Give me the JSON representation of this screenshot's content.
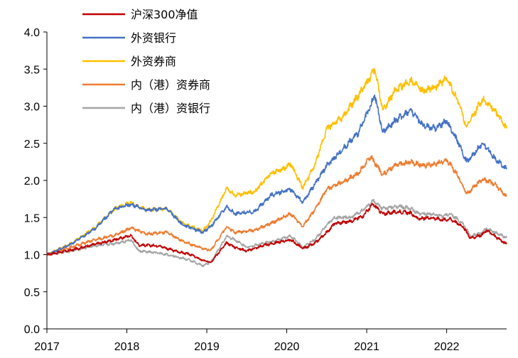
{
  "chart_data": {
    "type": "line",
    "title": "",
    "xlabel": "",
    "ylabel": "",
    "x_ticks": [
      "2017",
      "2018",
      "2019",
      "2020",
      "2021",
      "2022"
    ],
    "x_range": [
      2017.0,
      2022.75
    ],
    "y_ticks": [
      "0.0",
      "0.5",
      "1.0",
      "1.5",
      "2.0",
      "2.5",
      "3.0",
      "3.5",
      "4.0"
    ],
    "ylim": [
      0,
      4
    ],
    "grid": false,
    "legend_position": "top-center",
    "series": [
      {
        "name": "沪深300净值",
        "color": "#C00000",
        "points": [
          [
            2017.0,
            1.0
          ],
          [
            2017.3,
            1.06
          ],
          [
            2017.6,
            1.14
          ],
          [
            2017.85,
            1.2
          ],
          [
            2018.05,
            1.26
          ],
          [
            2018.15,
            1.13
          ],
          [
            2018.4,
            1.12
          ],
          [
            2018.6,
            1.05
          ],
          [
            2018.8,
            1.0
          ],
          [
            2018.95,
            0.92
          ],
          [
            2019.05,
            0.9
          ],
          [
            2019.25,
            1.16
          ],
          [
            2019.35,
            1.1
          ],
          [
            2019.5,
            1.05
          ],
          [
            2019.7,
            1.12
          ],
          [
            2019.9,
            1.17
          ],
          [
            2020.05,
            1.2
          ],
          [
            2020.2,
            1.08
          ],
          [
            2020.35,
            1.15
          ],
          [
            2020.5,
            1.3
          ],
          [
            2020.6,
            1.42
          ],
          [
            2020.8,
            1.45
          ],
          [
            2020.95,
            1.52
          ],
          [
            2021.08,
            1.68
          ],
          [
            2021.2,
            1.55
          ],
          [
            2021.4,
            1.58
          ],
          [
            2021.55,
            1.56
          ],
          [
            2021.65,
            1.48
          ],
          [
            2021.8,
            1.5
          ],
          [
            2021.95,
            1.47
          ],
          [
            2022.05,
            1.48
          ],
          [
            2022.2,
            1.38
          ],
          [
            2022.3,
            1.22
          ],
          [
            2022.45,
            1.27
          ],
          [
            2022.5,
            1.33
          ],
          [
            2022.6,
            1.25
          ],
          [
            2022.75,
            1.14
          ]
        ]
      },
      {
        "name": "外资银行",
        "color": "#4472C4",
        "points": [
          [
            2017.0,
            1.0
          ],
          [
            2017.3,
            1.14
          ],
          [
            2017.6,
            1.35
          ],
          [
            2017.85,
            1.62
          ],
          [
            2018.05,
            1.68
          ],
          [
            2018.25,
            1.6
          ],
          [
            2018.5,
            1.62
          ],
          [
            2018.7,
            1.4
          ],
          [
            2018.95,
            1.3
          ],
          [
            2019.05,
            1.38
          ],
          [
            2019.25,
            1.65
          ],
          [
            2019.35,
            1.55
          ],
          [
            2019.6,
            1.58
          ],
          [
            2019.8,
            1.8
          ],
          [
            2019.95,
            1.85
          ],
          [
            2020.05,
            1.88
          ],
          [
            2020.2,
            1.7
          ],
          [
            2020.35,
            1.95
          ],
          [
            2020.5,
            2.2
          ],
          [
            2020.7,
            2.42
          ],
          [
            2020.9,
            2.65
          ],
          [
            2021.05,
            3.0
          ],
          [
            2021.1,
            3.15
          ],
          [
            2021.2,
            2.65
          ],
          [
            2021.35,
            2.8
          ],
          [
            2021.55,
            2.95
          ],
          [
            2021.7,
            2.75
          ],
          [
            2021.85,
            2.7
          ],
          [
            2022.0,
            2.8
          ],
          [
            2022.15,
            2.5
          ],
          [
            2022.25,
            2.25
          ],
          [
            2022.45,
            2.5
          ],
          [
            2022.6,
            2.3
          ],
          [
            2022.75,
            2.15
          ]
        ]
      },
      {
        "name": "外资券商",
        "color": "#FFC000",
        "points": [
          [
            2017.0,
            1.0
          ],
          [
            2017.3,
            1.15
          ],
          [
            2017.6,
            1.36
          ],
          [
            2017.85,
            1.62
          ],
          [
            2018.05,
            1.7
          ],
          [
            2018.25,
            1.6
          ],
          [
            2018.5,
            1.62
          ],
          [
            2018.7,
            1.42
          ],
          [
            2018.95,
            1.32
          ],
          [
            2019.05,
            1.45
          ],
          [
            2019.25,
            1.9
          ],
          [
            2019.35,
            1.8
          ],
          [
            2019.6,
            1.85
          ],
          [
            2019.8,
            2.1
          ],
          [
            2019.95,
            2.15
          ],
          [
            2020.05,
            2.22
          ],
          [
            2020.2,
            1.9
          ],
          [
            2020.35,
            2.2
          ],
          [
            2020.5,
            2.7
          ],
          [
            2020.7,
            2.85
          ],
          [
            2020.9,
            3.15
          ],
          [
            2021.05,
            3.4
          ],
          [
            2021.1,
            3.5
          ],
          [
            2021.2,
            2.95
          ],
          [
            2021.35,
            3.2
          ],
          [
            2021.55,
            3.35
          ],
          [
            2021.7,
            3.2
          ],
          [
            2021.85,
            3.25
          ],
          [
            2022.0,
            3.38
          ],
          [
            2022.15,
            3.05
          ],
          [
            2022.25,
            2.72
          ],
          [
            2022.45,
            3.1
          ],
          [
            2022.6,
            2.95
          ],
          [
            2022.75,
            2.7
          ]
        ]
      },
      {
        "name": "内（港）资券商",
        "color": "#ED7D31",
        "points": [
          [
            2017.0,
            1.0
          ],
          [
            2017.3,
            1.1
          ],
          [
            2017.6,
            1.2
          ],
          [
            2017.85,
            1.26
          ],
          [
            2018.05,
            1.36
          ],
          [
            2018.25,
            1.28
          ],
          [
            2018.5,
            1.3
          ],
          [
            2018.7,
            1.18
          ],
          [
            2018.95,
            1.08
          ],
          [
            2019.05,
            1.06
          ],
          [
            2019.25,
            1.38
          ],
          [
            2019.35,
            1.3
          ],
          [
            2019.6,
            1.33
          ],
          [
            2019.8,
            1.42
          ],
          [
            2019.95,
            1.5
          ],
          [
            2020.05,
            1.55
          ],
          [
            2020.2,
            1.38
          ],
          [
            2020.35,
            1.6
          ],
          [
            2020.5,
            1.88
          ],
          [
            2020.7,
            1.98
          ],
          [
            2020.9,
            2.1
          ],
          [
            2021.05,
            2.32
          ],
          [
            2021.2,
            2.08
          ],
          [
            2021.35,
            2.2
          ],
          [
            2021.55,
            2.25
          ],
          [
            2021.7,
            2.2
          ],
          [
            2021.85,
            2.22
          ],
          [
            2022.0,
            2.28
          ],
          [
            2022.15,
            2.05
          ],
          [
            2022.25,
            1.82
          ],
          [
            2022.45,
            2.02
          ],
          [
            2022.6,
            1.95
          ],
          [
            2022.75,
            1.78
          ]
        ]
      },
      {
        "name": "内（港）资银行",
        "color": "#A5A5A5",
        "points": [
          [
            2017.0,
            1.0
          ],
          [
            2017.3,
            1.05
          ],
          [
            2017.6,
            1.12
          ],
          [
            2017.85,
            1.15
          ],
          [
            2018.05,
            1.2
          ],
          [
            2018.15,
            1.05
          ],
          [
            2018.4,
            1.02
          ],
          [
            2018.6,
            0.98
          ],
          [
            2018.8,
            0.92
          ],
          [
            2018.95,
            0.85
          ],
          [
            2019.05,
            0.9
          ],
          [
            2019.25,
            1.25
          ],
          [
            2019.35,
            1.2
          ],
          [
            2019.5,
            1.1
          ],
          [
            2019.7,
            1.15
          ],
          [
            2019.9,
            1.2
          ],
          [
            2020.05,
            1.25
          ],
          [
            2020.2,
            1.1
          ],
          [
            2020.35,
            1.2
          ],
          [
            2020.5,
            1.4
          ],
          [
            2020.6,
            1.5
          ],
          [
            2020.8,
            1.5
          ],
          [
            2020.95,
            1.6
          ],
          [
            2021.08,
            1.72
          ],
          [
            2021.2,
            1.62
          ],
          [
            2021.4,
            1.65
          ],
          [
            2021.55,
            1.62
          ],
          [
            2021.65,
            1.55
          ],
          [
            2021.8,
            1.55
          ],
          [
            2021.95,
            1.52
          ],
          [
            2022.05,
            1.55
          ],
          [
            2022.2,
            1.42
          ],
          [
            2022.3,
            1.25
          ],
          [
            2022.45,
            1.3
          ],
          [
            2022.5,
            1.35
          ],
          [
            2022.6,
            1.3
          ],
          [
            2022.75,
            1.23
          ]
        ]
      }
    ]
  }
}
